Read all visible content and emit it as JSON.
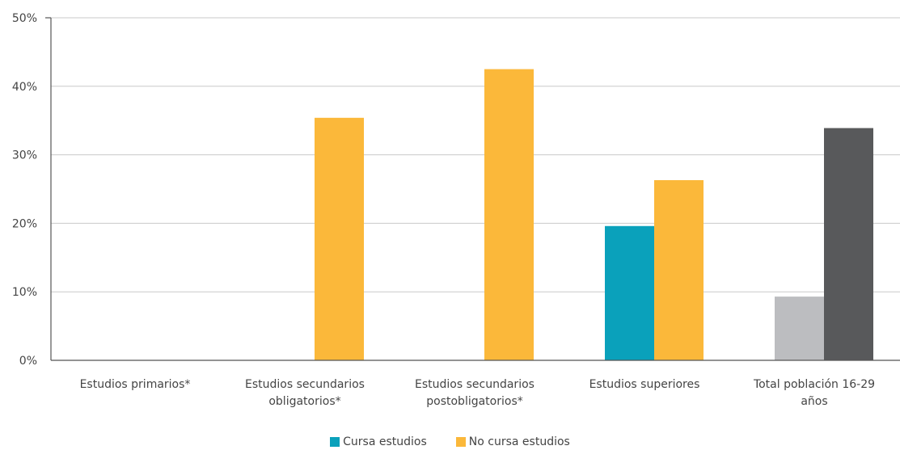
{
  "chart_data": {
    "type": "bar",
    "categories": [
      [
        "Estudios primarios*"
      ],
      [
        "Estudios secundarios",
        "obligatorios*"
      ],
      [
        "Estudios secundarios",
        "postobligatorios*"
      ],
      [
        "Estudios superiores"
      ],
      [
        "Total población 16-29",
        "años"
      ]
    ],
    "yticks": [
      "0%",
      "10%",
      "20%",
      "30%",
      "40%",
      "50%"
    ],
    "ylim": [
      0,
      50
    ],
    "grid": true,
    "legend_position": "bottom-center",
    "series": [
      {
        "name": "Cursa estudios",
        "color": "#0aa1bb",
        "values": [
          null,
          null,
          null,
          19.6,
          null
        ]
      },
      {
        "name": "No cursa estudios",
        "color": "#fbb83a",
        "values": [
          null,
          35.4,
          42.5,
          26.3,
          null
        ]
      }
    ],
    "total_bars": [
      {
        "color": "#bcbdc0",
        "value": 9.3
      },
      {
        "color": "#58595b",
        "value": 33.9
      }
    ]
  }
}
